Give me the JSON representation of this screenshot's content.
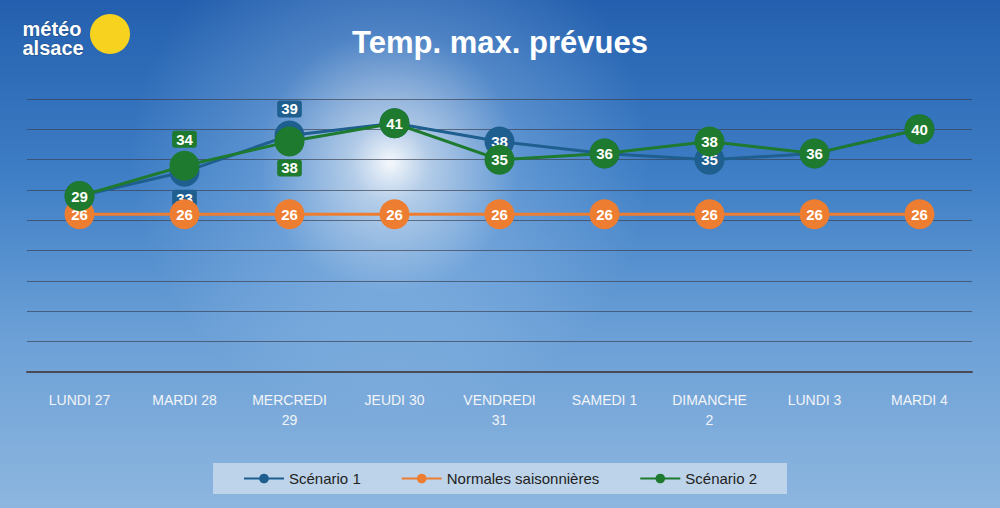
{
  "chart_data": {
    "type": "line",
    "title": "Temp. max. prévues",
    "logo": "météo alsace",
    "categories": [
      "LUNDI 27",
      "MARDI 28",
      "MERCREDI 29",
      "JEUDI 30",
      "VENDREDI 31",
      "SAMEDI 1",
      "DIMANCHE 2",
      "LUNDI 3",
      "MARDI 4"
    ],
    "series": [
      {
        "name": "Scénario 1",
        "color": "#1f5f8f",
        "values": [
          29,
          33,
          39,
          41,
          38,
          36,
          35,
          36,
          40
        ]
      },
      {
        "name": "Normales saisonnières",
        "color": "#ed7d31",
        "values": [
          26,
          26,
          26,
          26,
          26,
          26,
          26,
          26,
          26
        ]
      },
      {
        "name": "Scénario 2",
        "color": "#1e7a2e",
        "values": [
          29,
          34,
          38,
          41,
          35,
          36,
          38,
          36,
          40
        ]
      }
    ],
    "ylim": [
      0,
      45
    ],
    "yticks": [
      0,
      5,
      10,
      15,
      20,
      25,
      30,
      35,
      40,
      45
    ],
    "grid": true,
    "legend": "bottom",
    "data_labels": true,
    "tick_labels": "x",
    "marker": "circle",
    "line_style": "solid"
  }
}
